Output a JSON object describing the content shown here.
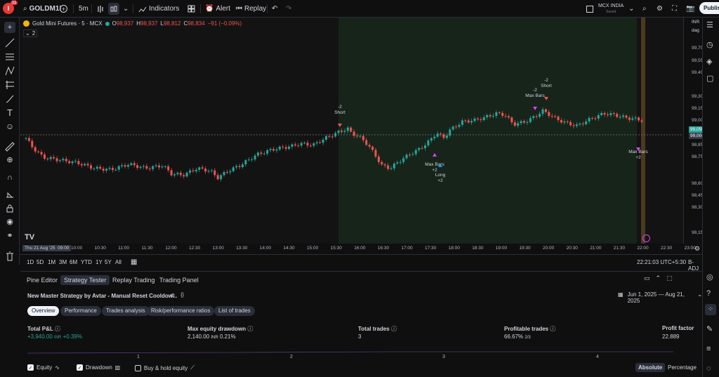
{
  "topbar": {
    "symbol": "GOLDM1!",
    "timeframe": "5m",
    "indicators_label": "Indicators",
    "alert_label": "Alert",
    "replay_label": "Replay",
    "exchange": "MCX INDIA",
    "exchange_sub": "Saved",
    "publish_label": "Publish",
    "avatar_badge": "11"
  },
  "legend": {
    "title": "Gold Mini Futures · 5 · MCX",
    "o_label": "O",
    "o_value": "98,937",
    "h_label": "H",
    "h_value": "98,937",
    "l_label": "L",
    "l_value": "98,812",
    "c_label": "C",
    "c_value": "98,834",
    "change": "−91 (−0.09%)",
    "indicator_count": "2"
  },
  "price_axis": {
    "currency": "INR",
    "unit": "dag",
    "labels": [
      "99,700",
      "99,550",
      "99,400",
      "99,300",
      "99,150",
      "99,000",
      "98,850",
      "98,750",
      "98,600",
      "98,450",
      "98,300",
      "98,150"
    ],
    "current_price": "99,050",
    "cursor_price": "99,004"
  },
  "time_axis": {
    "cursor_label": "Thu 21 Aug '25",
    "cursor_time": "09:00",
    "labels": [
      "10:00",
      "10:30",
      "11:00",
      "11:30",
      "12:00",
      "12:30",
      "13:00",
      "13:30",
      "14:00",
      "14:30",
      "15:00",
      "15:30",
      "16:00",
      "16:30",
      "17:00",
      "17:30",
      "18:00",
      "18:30",
      "19:00",
      "19:30",
      "20:00",
      "20:30",
      "21:00",
      "21:30",
      "22:00",
      "22:30",
      "23:00"
    ]
  },
  "chart_data": {
    "type": "candlestick",
    "title": "Gold Mini Futures · 5 · MCX",
    "ylim": [
      98150,
      99800
    ],
    "annotations": [
      {
        "text": "-2",
        "sub": "Short"
      },
      {
        "text": "Max Bars",
        "sub": "+2"
      },
      {
        "text": "Long",
        "sub": "+2"
      },
      {
        "text": "-2",
        "sub": "Max Bars"
      },
      {
        "text": "-2",
        "sub": "Short"
      },
      {
        "text": "Max Bars",
        "sub": "+2"
      }
    ]
  },
  "range_bar": {
    "ranges": [
      "1D",
      "5D",
      "1M",
      "3M",
      "6M",
      "YTD",
      "1Y",
      "5Y",
      "All"
    ],
    "clock": "22:21:03 UTC+5:30",
    "adj": "B-ADJ"
  },
  "bottom_tabs": [
    "Pine Editor",
    "Strategy Tester",
    "Replay Trading",
    "Trading Panel"
  ],
  "strategy": {
    "name": "New Master Strategy by Avtar - Manual Reset Cooldow...",
    "date_range": "Jun 1, 2025 — Aug 21, 2025",
    "subtabs": [
      "Overview",
      "Performance",
      "Trades analysis",
      "Risk/performance ratios",
      "List of trades"
    ],
    "stats": [
      {
        "label": "Total P&L",
        "value": "+3,940.00",
        "unit": "INR",
        "extra": "+0.39%"
      },
      {
        "label": "Max equity drawdown",
        "value": "2,140.00",
        "unit": "INR",
        "extra": "0.21%"
      },
      {
        "label": "Total trades",
        "value": "3",
        "unit": "",
        "extra": ""
      },
      {
        "label": "Profitable trades",
        "value": "66.67%",
        "unit": "",
        "extra": "2/3"
      },
      {
        "label": "Profit factor",
        "value": "22.889",
        "unit": "",
        "extra": ""
      }
    ],
    "equity_axis": [
      "1",
      "2",
      "3",
      "4"
    ],
    "checkboxes": [
      {
        "label": "Equity",
        "checked": true
      },
      {
        "label": "Drawdown",
        "checked": true
      },
      {
        "label": "Buy & hold equity",
        "checked": false
      }
    ],
    "mode_absolute": "Absolute",
    "mode_percentage": "Percentage"
  },
  "colors": {
    "up": "#26a69a",
    "down": "#ef5350",
    "session_bg": "#16241a",
    "accent_orange": "#ff9800"
  }
}
